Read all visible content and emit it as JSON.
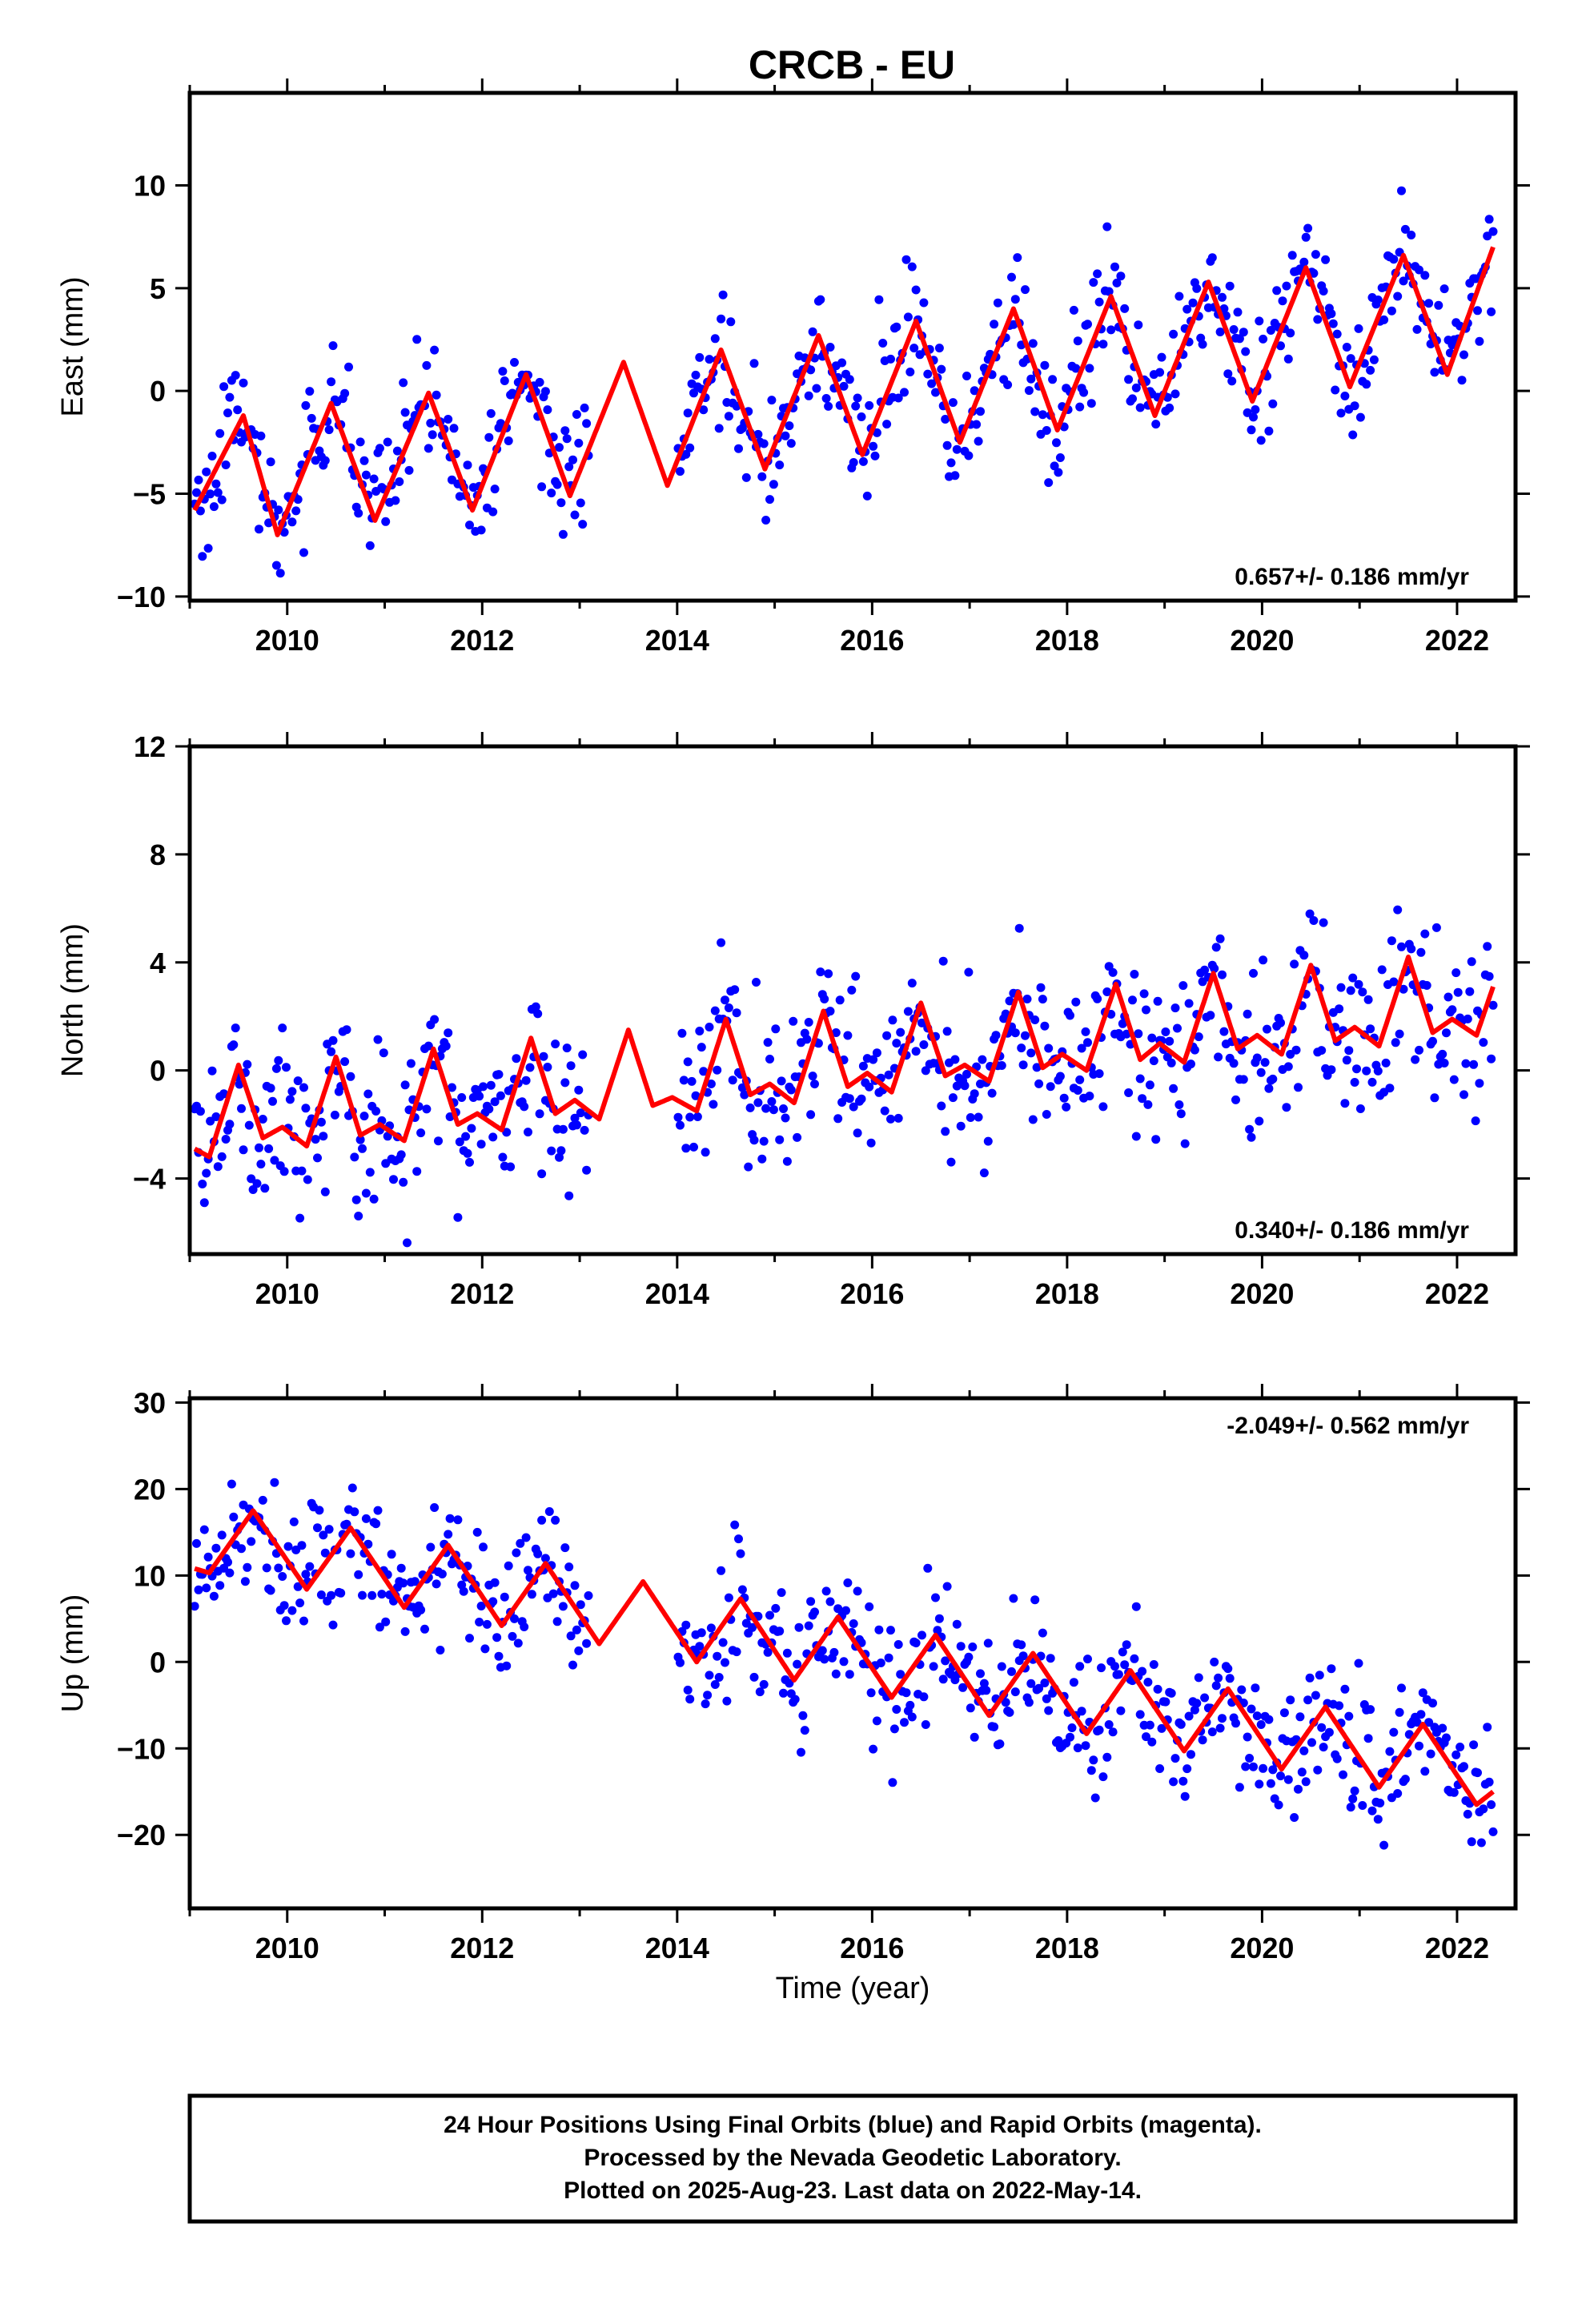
{
  "title": "CRCB - EU",
  "footer": {
    "lines": [
      "24 Hour Positions Using Final Orbits (blue) and Rapid Orbits (magenta).",
      "Processed by the Nevada Geodetic Laboratory.",
      "Plotted on 2025-Aug-23. Last data on 2022-May-14."
    ]
  },
  "colors": {
    "points": "#0000ff",
    "model": "#ff0000",
    "axes": "#000000"
  },
  "chart_data": [
    {
      "type": "scatter",
      "ylabel": "East (mm)",
      "xlabel": "",
      "xlim": [
        2009.0,
        2022.6
      ],
      "ylim": [
        -10.2,
        14.5
      ],
      "xticks": [
        2010,
        2012,
        2014,
        2016,
        2018,
        2020,
        2022
      ],
      "yticks": [
        -10,
        -5,
        0,
        5,
        10
      ],
      "rate": "0.657+/- 0.186 mm/yr",
      "rate_position": "bottom-right",
      "series": [
        {
          "role": "daily positions",
          "color": "#0000ff",
          "x_range": [
            2009.05,
            2022.37
          ],
          "gap": [
            2013.1,
            2014.0
          ],
          "sample_step_years": 0.02,
          "seasonal_amplitude": 3.0,
          "scatter_sd": 1.4
        },
        {
          "role": "model fit",
          "color": "#ff0000",
          "x": [
            2009.05,
            2009.55,
            2009.9,
            2010.45,
            2010.9,
            2011.45,
            2011.9,
            2012.45,
            2012.9,
            2013.45,
            2013.9,
            2014.45,
            2014.9,
            2015.45,
            2015.9,
            2016.45,
            2016.9,
            2017.45,
            2017.9,
            2018.45,
            2018.9,
            2019.45,
            2019.9,
            2020.45,
            2020.9,
            2021.45,
            2021.9,
            2022.37
          ],
          "y": [
            -5.8,
            -1.2,
            -7.0,
            -0.6,
            -6.3,
            -0.1,
            -5.8,
            0.8,
            -5.1,
            1.4,
            -4.6,
            2.0,
            -3.8,
            2.7,
            -3.1,
            3.4,
            -2.5,
            4.0,
            -1.9,
            4.6,
            -1.2,
            5.3,
            -0.5,
            6.0,
            0.2,
            6.6,
            0.8,
            7.0
          ]
        }
      ]
    },
    {
      "type": "scatter",
      "ylabel": "North (mm)",
      "xlabel": "",
      "xlim": [
        2009.0,
        2022.6
      ],
      "ylim": [
        -6.8,
        12.0
      ],
      "xticks": [
        2010,
        2012,
        2014,
        2016,
        2018,
        2020,
        2022
      ],
      "yticks": [
        -4,
        0,
        4,
        8,
        12
      ],
      "rate": "0.340+/- 0.186 mm/yr",
      "rate_position": "bottom-right",
      "series": [
        {
          "role": "daily positions",
          "color": "#0000ff",
          "x_range": [
            2009.05,
            2022.37
          ],
          "gap": [
            2013.1,
            2014.0
          ],
          "sample_step_years": 0.02,
          "seasonal_amplitude": 1.3,
          "scatter_sd": 1.5
        },
        {
          "role": "model fit",
          "color": "#ff0000",
          "x": [
            2009.05,
            2009.2,
            2009.5,
            2009.75,
            2009.95,
            2010.2,
            2010.5,
            2010.75,
            2010.95,
            2011.2,
            2011.5,
            2011.75,
            2011.95,
            2012.2,
            2012.5,
            2012.75,
            2012.95,
            2013.2,
            2013.5,
            2013.75,
            2013.95,
            2014.2,
            2014.5,
            2014.75,
            2014.95,
            2015.2,
            2015.5,
            2015.75,
            2015.95,
            2016.2,
            2016.5,
            2016.75,
            2016.95,
            2017.2,
            2017.5,
            2017.75,
            2017.95,
            2018.2,
            2018.5,
            2018.75,
            2018.95,
            2019.2,
            2019.5,
            2019.75,
            2019.95,
            2020.2,
            2020.5,
            2020.75,
            2020.95,
            2021.2,
            2021.5,
            2021.75,
            2021.95,
            2022.2,
            2022.37
          ],
          "y": [
            -2.9,
            -3.2,
            0.2,
            -2.5,
            -2.1,
            -2.8,
            0.5,
            -2.4,
            -2.0,
            -2.6,
            0.8,
            -2.0,
            -1.6,
            -2.2,
            1.2,
            -1.6,
            -1.1,
            -1.8,
            1.5,
            -1.3,
            -1.0,
            -1.5,
            1.9,
            -0.9,
            -0.5,
            -1.2,
            2.2,
            -0.6,
            -0.1,
            -0.8,
            2.5,
            -0.2,
            0.2,
            -0.4,
            2.9,
            0.1,
            0.6,
            0.0,
            3.2,
            0.4,
            1.0,
            0.3,
            3.6,
            0.8,
            1.3,
            0.6,
            3.9,
            1.1,
            1.6,
            0.9,
            4.2,
            1.4,
            1.9,
            1.3,
            3.1
          ]
        }
      ]
    },
    {
      "type": "scatter",
      "ylabel": "Up (mm)",
      "xlabel": "Time (year)",
      "xlim": [
        2009.0,
        2022.6
      ],
      "ylim": [
        -28.5,
        30.5
      ],
      "xticks": [
        2010,
        2012,
        2014,
        2016,
        2018,
        2020,
        2022
      ],
      "yticks": [
        -20,
        -10,
        0,
        10,
        20,
        30
      ],
      "rate": "-2.049+/- 0.562 mm/yr",
      "rate_position": "top-right",
      "series": [
        {
          "role": "daily positions",
          "color": "#0000ff",
          "x_range": [
            2009.05,
            2022.37
          ],
          "gap": [
            2013.1,
            2014.0
          ],
          "sample_step_years": 0.02,
          "seasonal_amplitude": 6.5,
          "scatter_sd": 3.8
        },
        {
          "role": "model fit",
          "color": "#ff0000",
          "x": [
            2009.05,
            2009.2,
            2009.65,
            2010.2,
            2010.65,
            2011.2,
            2011.65,
            2012.2,
            2012.65,
            2013.2,
            2013.65,
            2014.2,
            2014.65,
            2015.2,
            2015.65,
            2016.2,
            2016.65,
            2017.2,
            2017.65,
            2018.2,
            2018.65,
            2019.2,
            2019.65,
            2020.2,
            2020.65,
            2021.2,
            2021.65,
            2022.2,
            2022.37
          ],
          "y": [
            10.8,
            10.3,
            17.5,
            8.4,
            15.5,
            6.3,
            13.5,
            4.2,
            11.4,
            2.1,
            9.3,
            0.0,
            7.3,
            -2.1,
            5.2,
            -4.1,
            3.1,
            -6.2,
            1.0,
            -8.3,
            -1.0,
            -10.3,
            -3.1,
            -12.4,
            -5.2,
            -14.5,
            -7.2,
            -16.5,
            -15.0
          ]
        }
      ]
    }
  ]
}
